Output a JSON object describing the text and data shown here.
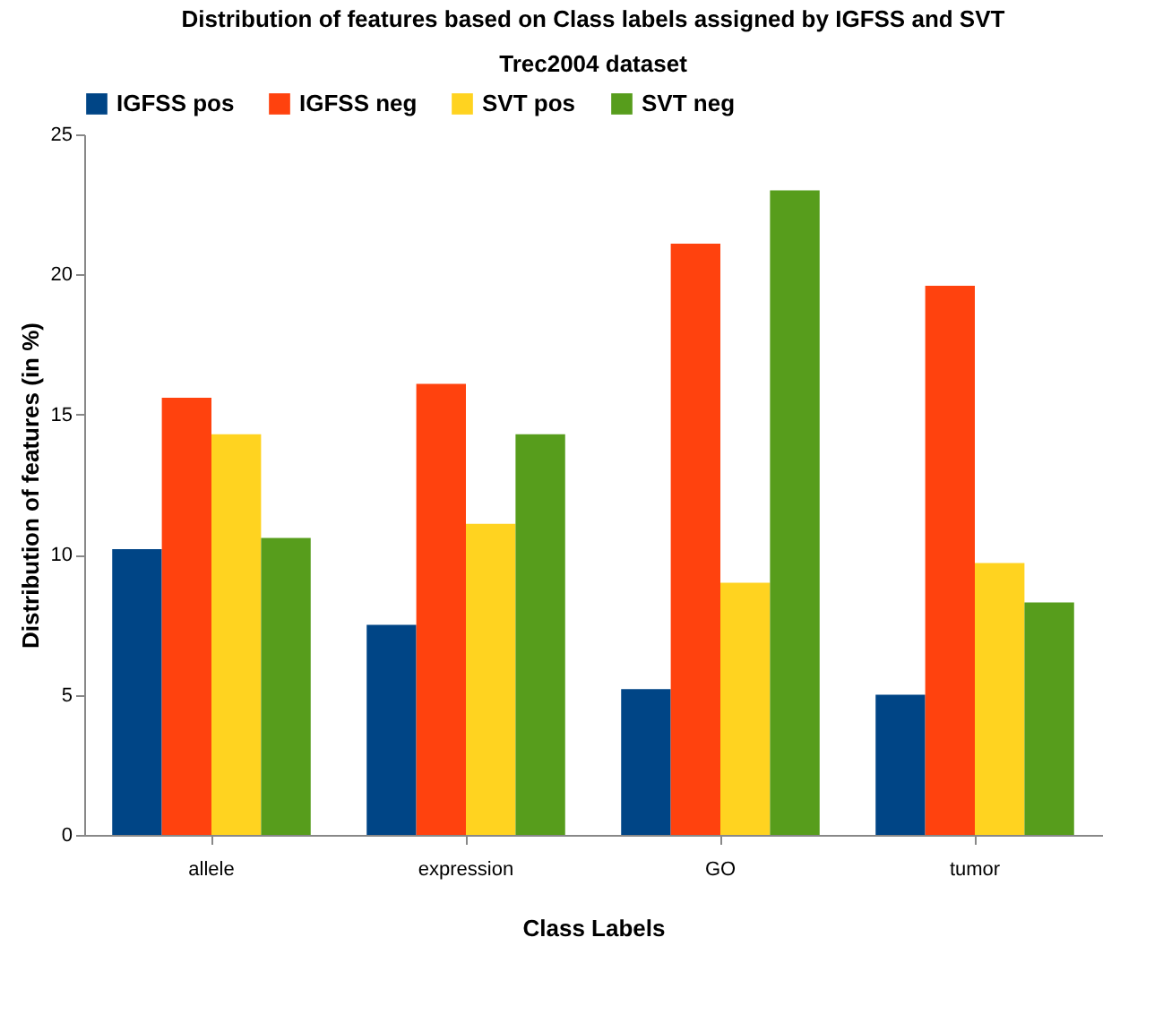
{
  "chart_data": {
    "type": "bar",
    "title": "Distribution of features based on Class labels assigned by IGFSS and SVT",
    "subtitle": "Trec2004 dataset",
    "xlabel": "Class Labels",
    "ylabel": "Distribution of features (in %)",
    "categories": [
      "allele",
      "expression",
      "GO",
      "tumor"
    ],
    "series": [
      {
        "name": "IGFSS pos",
        "color": "#004586",
        "values": [
          10.2,
          7.5,
          5.2,
          5.0
        ]
      },
      {
        "name": "IGFSS neg",
        "color": "#ff420e",
        "values": [
          15.6,
          16.1,
          21.1,
          19.6
        ]
      },
      {
        "name": "SVT pos",
        "color": "#ffd320",
        "values": [
          14.3,
          11.1,
          9.0,
          9.7
        ]
      },
      {
        "name": "SVT neg",
        "color": "#579d1c",
        "values": [
          10.6,
          14.3,
          23.0,
          8.3
        ]
      }
    ],
    "ylim": [
      0,
      25
    ],
    "yticks": [
      0,
      5,
      10,
      15,
      20,
      25
    ],
    "grid": false,
    "legend": "top"
  }
}
